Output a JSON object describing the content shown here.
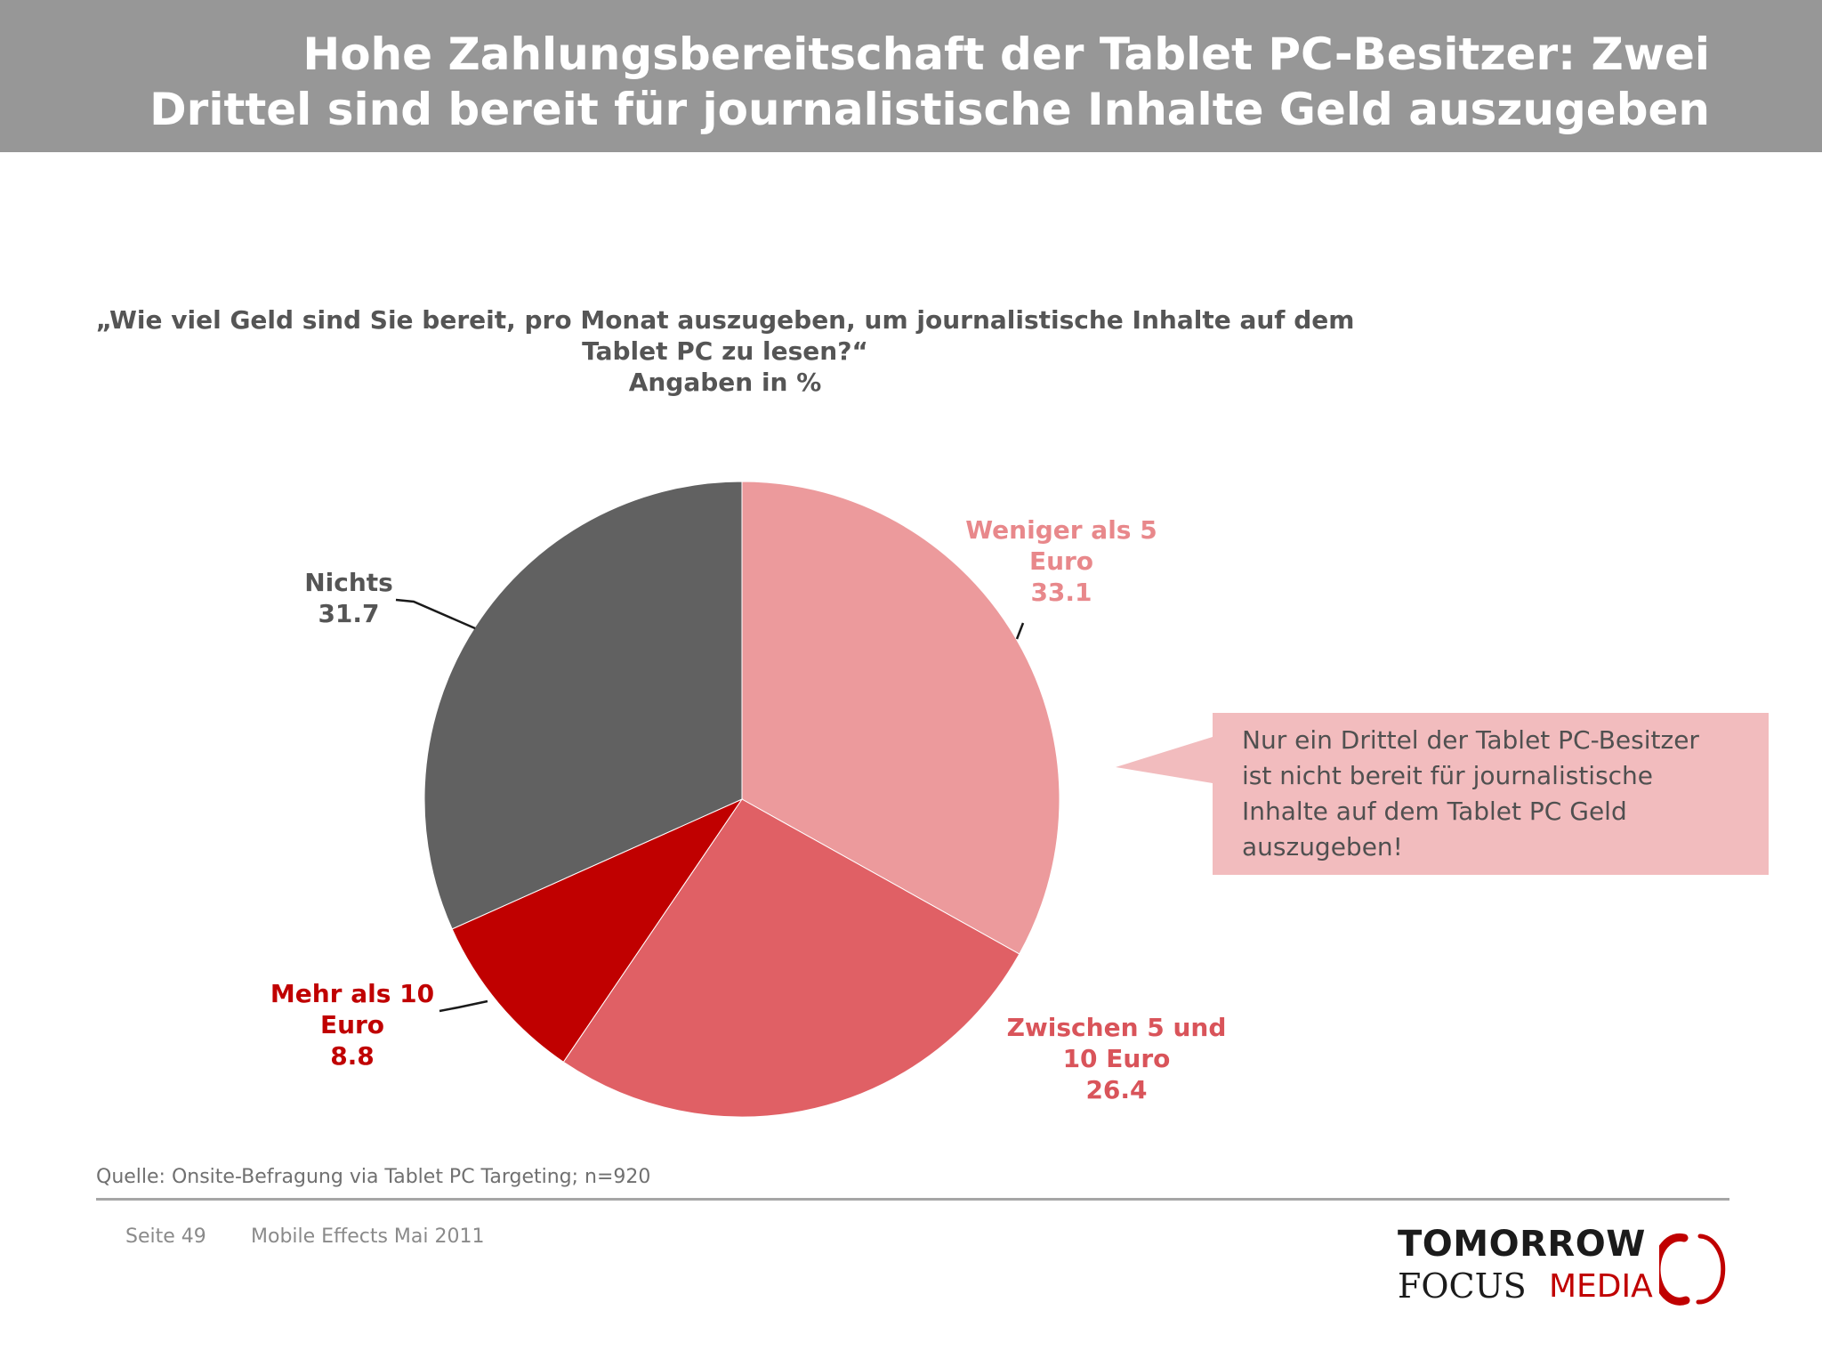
{
  "header": {
    "title_line1": "Hohe Zahlungsbereitschaft der Tablet PC-Besitzer: Zwei",
    "title_line2": "Drittel sind bereit für journalistische Inhalte Geld auszugeben"
  },
  "question": {
    "line1": "„Wie viel Geld sind Sie bereit, pro Monat auszugeben, um journalistische Inhalte auf dem",
    "line2": "Tablet PC zu lesen?“",
    "line3": "Angaben in %"
  },
  "chart_data": {
    "type": "pie",
    "slices": [
      {
        "label_lines": [
          "Weniger als 5",
          "Euro"
        ],
        "value": 33.1,
        "color": "#ec9a9c",
        "label_color": "#e8888b"
      },
      {
        "label_lines": [
          "Zwischen 5 und",
          "10 Euro"
        ],
        "value": 26.4,
        "color": "#e06065",
        "label_color": "#d9545a"
      },
      {
        "label_lines": [
          "Mehr als 10",
          "Euro"
        ],
        "value": 8.8,
        "color": "#c00000",
        "label_color": "#c00000"
      },
      {
        "label_lines": [
          "Nichts"
        ],
        "value": 31.7,
        "color": "#616161",
        "label_color": "#555555"
      }
    ]
  },
  "callout": {
    "text_lines": [
      "Nur ein Drittel der Tablet PC-Besitzer",
      "ist nicht bereit für journalistische",
      "Inhalte auf dem Tablet PC Geld",
      "auszugeben!"
    ],
    "color": "#f2bcbe"
  },
  "footer": {
    "source": "Quelle: Onsite-Befragung via Tablet PC Targeting; n=920",
    "page": "Seite 49",
    "title": "Mobile Effects Mai 2011"
  },
  "logo": {
    "line1": "TOMORROW",
    "line2": "FOCUS",
    "line3": "MEDIA"
  }
}
